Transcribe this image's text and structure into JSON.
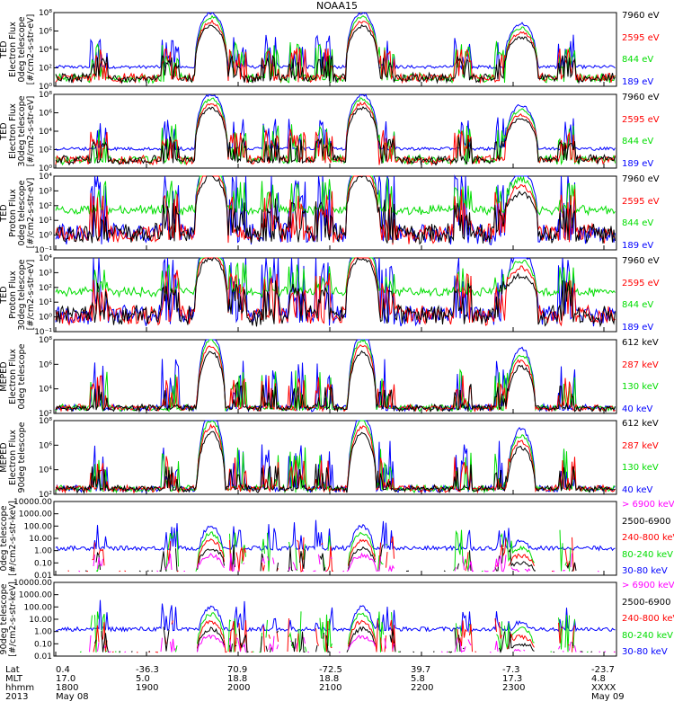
{
  "chart_data": {
    "title": "NOAA15",
    "type": "line",
    "x_axis": {
      "row_labels": [
        "Lat",
        "MLT",
        "hhmm",
        "2013"
      ],
      "ticks": [
        {
          "time": "1800",
          "lat": "0.4",
          "mlt": "17.0",
          "date": "May 08"
        },
        {
          "time": "1900",
          "lat": "-36.3",
          "mlt": "5.0",
          "date": ""
        },
        {
          "time": "2000",
          "lat": "70.9",
          "mlt": "18.8",
          "date": ""
        },
        {
          "time": "2100",
          "lat": "-72.5",
          "mlt": "18.8",
          "date": ""
        },
        {
          "time": "2200",
          "lat": "39.7",
          "mlt": "5.8",
          "date": ""
        },
        {
          "time": "2300",
          "lat": "-7.3",
          "mlt": "17.3",
          "date": ""
        },
        {
          "time": "XXXX",
          "lat": "-23.7",
          "mlt": "4.8",
          "date": "May 09"
        }
      ]
    },
    "panels": [
      {
        "ylabel": [
          "TED",
          "Electron Flux",
          "0deg telescope",
          "[#/cm2-s-str-eV]"
        ],
        "yticks": [
          "10⁰",
          "10²",
          "10⁴",
          "10⁶",
          "10⁸"
        ],
        "ylog": [
          0,
          8
        ],
        "base": 2,
        "series": [
          {
            "name": "7960 eV",
            "color": "#000000"
          },
          {
            "name": "2595 eV",
            "color": "#ff0000"
          },
          {
            "name": "844 eV",
            "color": "#00dd00"
          },
          {
            "name": "189 eV",
            "color": "#0000ff"
          }
        ]
      },
      {
        "ylabel": [
          "TED",
          "Electron Flux",
          "30deg telescope",
          "[#/cm2-s-str-eV]"
        ],
        "yticks": [
          "10⁰",
          "10²",
          "10⁴",
          "10⁶",
          "10⁸"
        ],
        "ylog": [
          0,
          8
        ],
        "base": 2,
        "series": [
          {
            "name": "7960 eV",
            "color": "#000000"
          },
          {
            "name": "2595 eV",
            "color": "#ff0000"
          },
          {
            "name": "844 eV",
            "color": "#00dd00"
          },
          {
            "name": "189 eV",
            "color": "#0000ff"
          }
        ]
      },
      {
        "ylabel": [
          "TED",
          "Proton Flux",
          "0deg telescope",
          "[#/cm2-s-str-eV]"
        ],
        "yticks": [
          "10⁻¹",
          "10⁰",
          "10¹",
          "10²",
          "10³",
          "10⁴"
        ],
        "ylog": [
          -1,
          4
        ],
        "base": 1,
        "series": [
          {
            "name": "7960 eV",
            "color": "#000000"
          },
          {
            "name": "2595 eV",
            "color": "#ff0000"
          },
          {
            "name": "844 eV",
            "color": "#00dd00"
          },
          {
            "name": "189 eV",
            "color": "#0000ff"
          }
        ]
      },
      {
        "ylabel": [
          "TED",
          "Proton Flux",
          "30deg telescope",
          "[#/cm2-s-str-eV]"
        ],
        "yticks": [
          "10⁻¹",
          "10⁰",
          "10¹",
          "10²",
          "10³",
          "10⁴"
        ],
        "ylog": [
          -1,
          4
        ],
        "base": 1,
        "series": [
          {
            "name": "7960 eV",
            "color": "#000000"
          },
          {
            "name": "2595 eV",
            "color": "#ff0000"
          },
          {
            "name": "844 eV",
            "color": "#00dd00"
          },
          {
            "name": "189 eV",
            "color": "#0000ff"
          }
        ]
      },
      {
        "ylabel": [
          "MEPED",
          "Electron Flux",
          "0deg telescope",
          ""
        ],
        "yticks": [
          "10²",
          "10⁴",
          "10⁶",
          "10⁸"
        ],
        "ylog": [
          2,
          8
        ],
        "base": 2,
        "series": [
          {
            "name": "612 keV",
            "color": "#000000"
          },
          {
            "name": "287 keV",
            "color": "#ff0000"
          },
          {
            "name": "130 keV",
            "color": "#00dd00"
          },
          {
            "name": "40 keV",
            "color": "#0000ff"
          }
        ]
      },
      {
        "ylabel": [
          "MEPED",
          "Electron Flux",
          "90deg telescope",
          ""
        ],
        "yticks": [
          "10²",
          "10⁴",
          "10⁶",
          "10⁸"
        ],
        "ylog": [
          2,
          8
        ],
        "base": 2,
        "series": [
          {
            "name": "612 keV",
            "color": "#000000"
          },
          {
            "name": "287 keV",
            "color": "#ff0000"
          },
          {
            "name": "130 keV",
            "color": "#00dd00"
          },
          {
            "name": "40 keV",
            "color": "#0000ff"
          }
        ]
      },
      {
        "ylabel": [
          "",
          "0deg telescope",
          "[#/cm2-s-str-keV]",
          ""
        ],
        "yticks": [
          "0.01",
          "0.10",
          "1.00",
          "10.00",
          "100.00",
          "1000.00",
          "10000.00"
        ],
        "ylog": [
          -2,
          4
        ],
        "base": -2,
        "series": [
          {
            "name": "> 6900 keV",
            "color": "#ff00ff"
          },
          {
            "name": "2500-6900",
            "color": "#000000"
          },
          {
            "name": "240-800 keV",
            "color": "#ff0000"
          },
          {
            "name": "80-240 keV",
            "color": "#00dd00"
          },
          {
            "name": "30-80 keV",
            "color": "#0000ff"
          }
        ]
      },
      {
        "ylabel": [
          "",
          "90deg telescope",
          "[#/cm2-s-str-keV]",
          ""
        ],
        "yticks": [
          "0.01",
          "0.10",
          "1.00",
          "10.00",
          "100.00",
          "1000.00",
          "10000.00"
        ],
        "ylog": [
          -2,
          4
        ],
        "base": -2,
        "series": [
          {
            "name": "> 6900 keV",
            "color": "#ff00ff"
          },
          {
            "name": "2500-6900",
            "color": "#000000"
          },
          {
            "name": "240-800 keV",
            "color": "#ff0000"
          },
          {
            "name": "80-240 keV",
            "color": "#00dd00"
          },
          {
            "name": "30-80 keV",
            "color": "#0000ff"
          }
        ]
      }
    ]
  }
}
